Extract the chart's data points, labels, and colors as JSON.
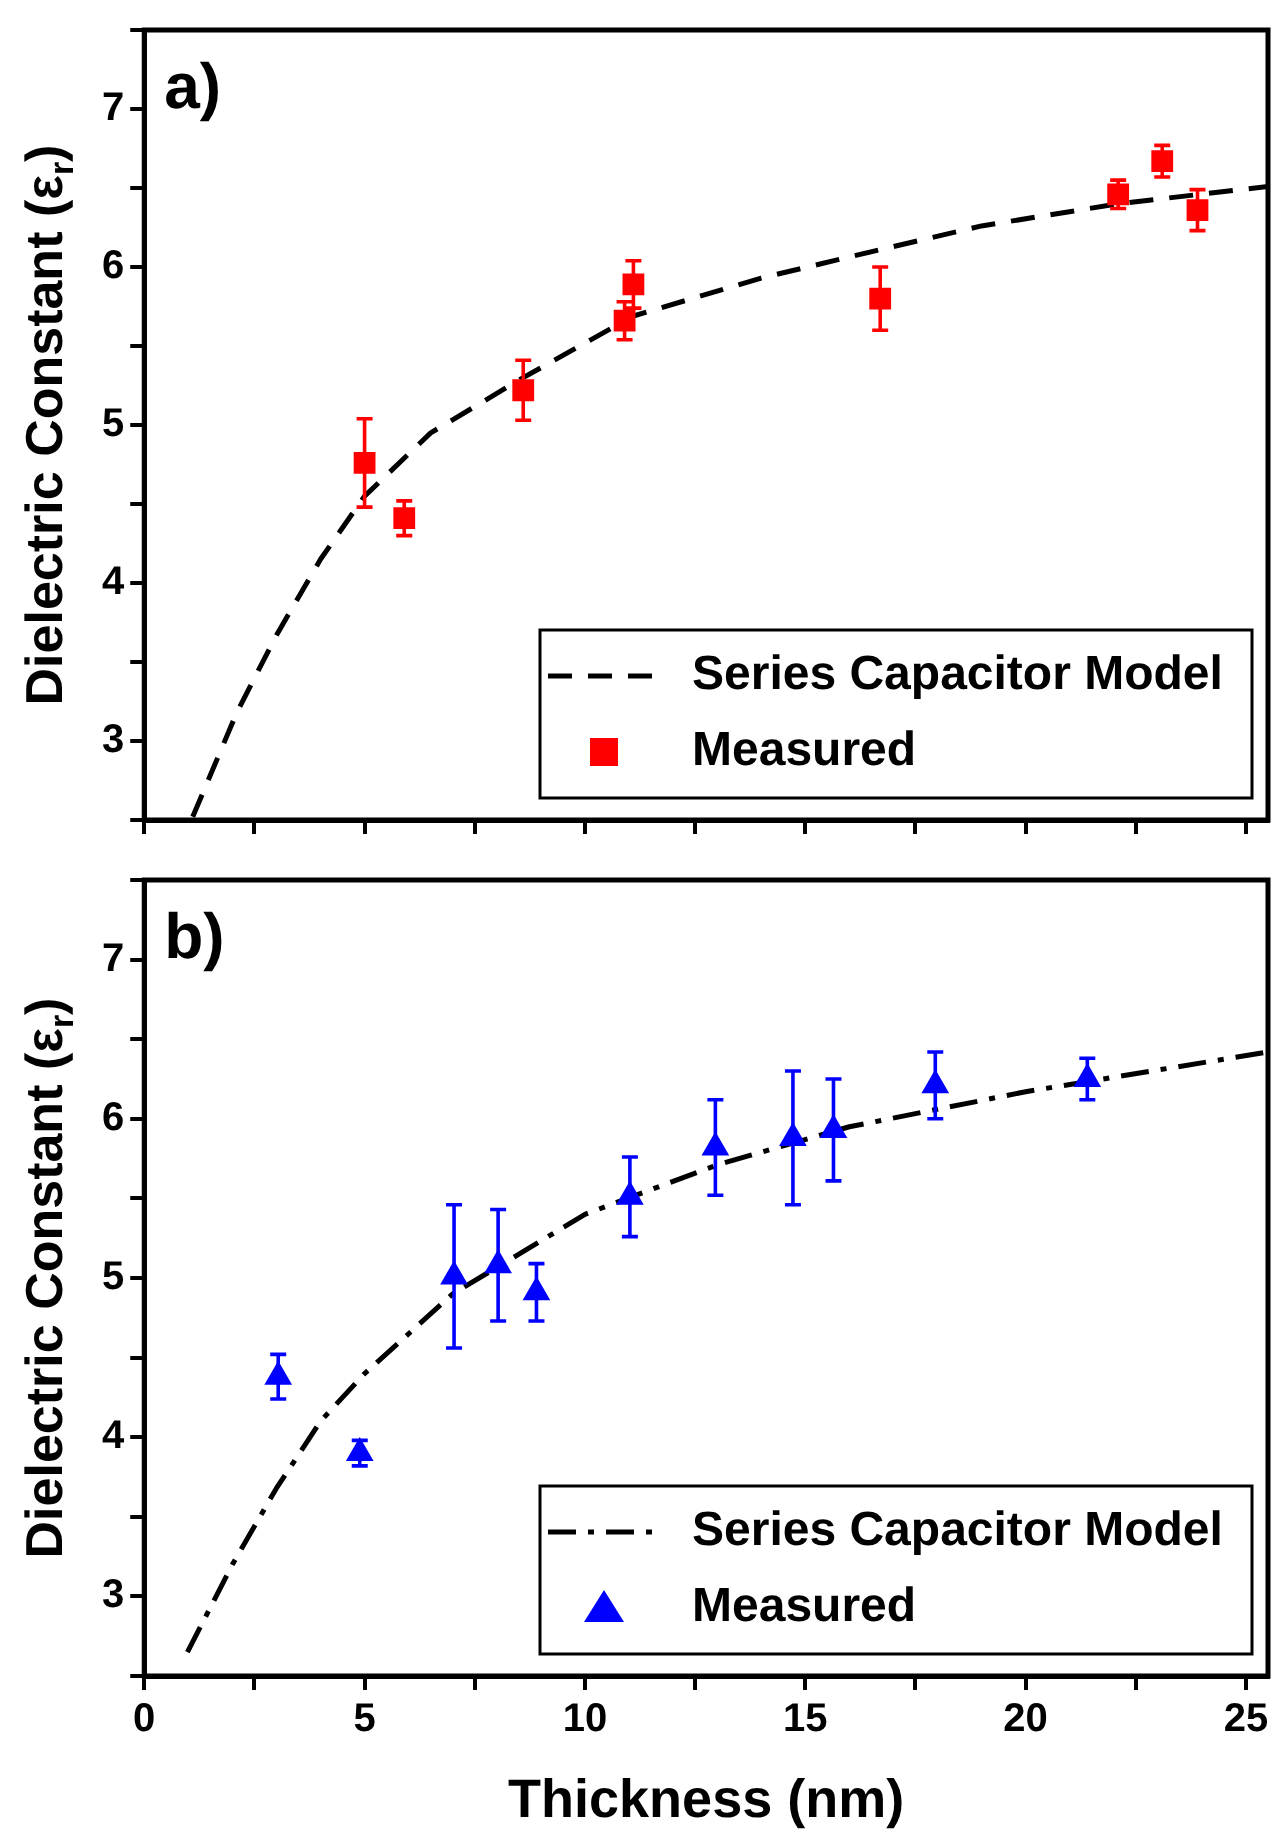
{
  "chart_data": [
    {
      "type": "scatter",
      "ylabel": "Dielectric Constant (ε$_{r}$)",
      "annotations": [
        "a)"
      ],
      "xlim": [
        0,
        25.5
      ],
      "ylim": [
        2.5,
        7.5
      ],
      "xticks": [
        0,
        {
          "value": 2.5,
          "label": null
        },
        5,
        {
          "value": 7.5,
          "label": null
        },
        10,
        {
          "value": 12.5,
          "label": null
        },
        15,
        {
          "value": 17.5,
          "label": null
        },
        20,
        {
          "value": 22.5,
          "label": null
        },
        25
      ],
      "yticks": [
        {
          "value": 2.5,
          "label": null
        },
        3,
        {
          "value": 3.5,
          "label": null
        },
        4,
        {
          "value": 4.5,
          "label": null
        },
        5,
        {
          "value": 5.5,
          "label": null
        },
        6,
        {
          "value": 6.5,
          "label": null
        },
        7,
        {
          "value": 7.5,
          "label": null
        }
      ],
      "tick_labels": "y",
      "legend": "bottom right",
      "series": [
        {
          "name": "Series Capacitor Model",
          "type": "line",
          "line_style": "dashed",
          "marker": "none",
          "color": "#000000",
          "x": [
            1.1,
            2.1,
            3,
            4,
            5,
            6.5,
            8.6,
            11.1,
            14,
            16.7,
            19,
            22.1,
            25.5
          ],
          "values": [
            2.52,
            3.18,
            3.67,
            4.15,
            4.55,
            4.95,
            5.3,
            5.69,
            5.93,
            6.11,
            6.26,
            6.4,
            6.51
          ]
        },
        {
          "name": "Measured",
          "marker": "square",
          "color": "#ff0000",
          "x": [
            5,
            5.9,
            8.6,
            10.9,
            11.1,
            16.7,
            22.1,
            23.1,
            23.9
          ],
          "values": [
            4.76,
            4.41,
            5.22,
            5.66,
            5.89,
            5.8,
            6.46,
            6.67,
            6.36
          ],
          "errors": [
            0.28,
            0.11,
            0.19,
            0.12,
            0.15,
            0.2,
            0.09,
            0.1,
            0.13
          ]
        }
      ]
    },
    {
      "type": "scatter",
      "ylabel": "Dielectric Constant (ε$_{r}$)",
      "xlabel": "Thickness (nm)",
      "annotations": [
        "b)"
      ],
      "xlim": [
        0,
        25.5
      ],
      "ylim": [
        2.5,
        7.5
      ],
      "xticks": [
        0,
        {
          "value": 2.5,
          "label": null
        },
        5,
        {
          "value": 7.5,
          "label": null
        },
        10,
        {
          "value": 12.5,
          "label": null
        },
        15,
        {
          "value": 17.5,
          "label": null
        },
        20,
        {
          "value": 22.5,
          "label": null
        },
        25
      ],
      "yticks": [
        {
          "value": 2.5,
          "label": null
        },
        3,
        {
          "value": 3.5,
          "label": null
        },
        4,
        {
          "value": 4.5,
          "label": null
        },
        5,
        {
          "value": 5.5,
          "label": null
        },
        6,
        {
          "value": 6.5,
          "label": null
        },
        7,
        {
          "value": 7.5,
          "label": null
        }
      ],
      "legend": "bottom right",
      "series": [
        {
          "name": "Series Capacitor Model",
          "type": "line",
          "line_style": "dashdot",
          "marker": "none",
          "color": "#000000",
          "x": [
            0.98,
            2,
            3,
            4,
            5,
            7,
            10,
            13,
            16,
            20,
            25.5
          ],
          "values": [
            2.65,
            3.2,
            3.68,
            4.1,
            4.4,
            4.9,
            5.4,
            5.71,
            5.95,
            6.17,
            6.42
          ]
        },
        {
          "name": "Measured",
          "marker": "triangle",
          "color": "#0000ff",
          "x": [
            3.04,
            4.89,
            7.03,
            8.03,
            8.9,
            11.02,
            12.96,
            14.72,
            15.64,
            17.95,
            21.4
          ],
          "values": [
            4.38,
            3.9,
            5.01,
            5.08,
            4.91,
            5.51,
            5.82,
            5.88,
            5.93,
            6.21,
            6.25
          ],
          "errors": [
            0.14,
            0.08,
            0.45,
            0.35,
            0.18,
            0.25,
            0.3,
            0.42,
            0.32,
            0.21,
            0.13
          ]
        }
      ]
    }
  ]
}
